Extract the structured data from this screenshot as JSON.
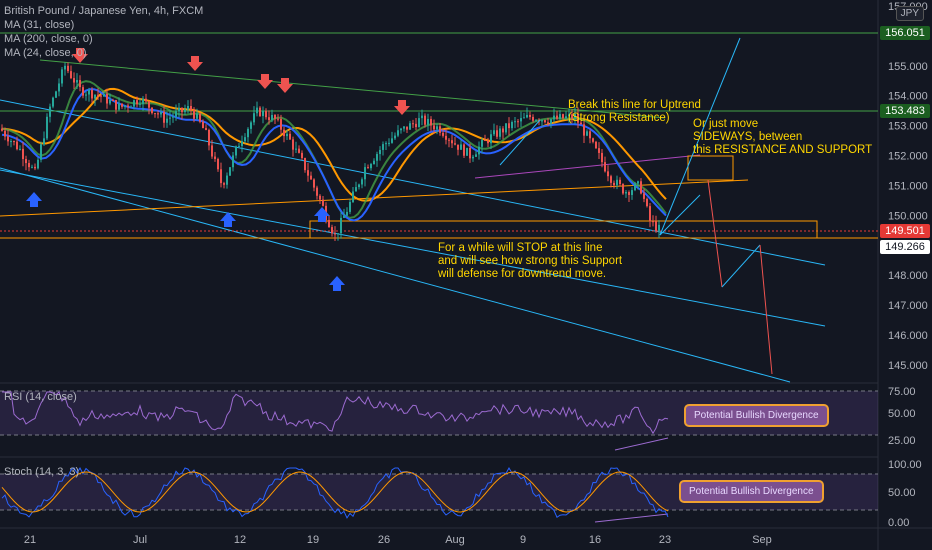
{
  "header": {
    "symbol": "British Pound / Japanese Yen, 4h, FXCM",
    "ma1": "MA (31, close)",
    "ma2": "MA (200, close, 0)",
    "ma3": "MA (24, close, 0)",
    "currency": "JPY"
  },
  "price_scale": [
    "157.000",
    "156.000",
    "155.000",
    "154.000",
    "153.000",
    "152.000",
    "151.000",
    "150.000",
    "149.000",
    "148.000",
    "147.000",
    "146.000",
    "145.000"
  ],
  "price_tags": [
    {
      "label": "156.051",
      "bg": "#1b5e20",
      "fg": "#ffffff"
    },
    {
      "label": "153.483",
      "bg": "#1b5e20",
      "fg": "#ffffff"
    },
    {
      "label": "149.501",
      "bg": "#e53935",
      "fg": "#ffffff"
    },
    {
      "label": "149.266",
      "bg": "#ffffff",
      "fg": "#131722"
    }
  ],
  "time_axis": [
    "21",
    "Jul",
    "12",
    "19",
    "26",
    "Aug",
    "9",
    "16",
    "23",
    "Sep"
  ],
  "annotations": {
    "break_line1": "Break this line for Uptrend",
    "break_line2": "(Strong Resistance)",
    "sideways1": "Or just move",
    "sideways2": "SIDEWAYS, between",
    "sideways3": "this RESISTANCE AND SUPPORT",
    "stop1": "For a while will STOP at this line",
    "stop2": "and will see how strong this Support",
    "stop3": "will defense for downtrend move."
  },
  "rsi": {
    "title": "RSI (14, close)",
    "scale": [
      "75.00",
      "50.00",
      "25.00"
    ],
    "callout": "Potential Bullish Divergence"
  },
  "stoch": {
    "title": "Stoch (14, 3, 3)",
    "scale": [
      "100.00",
      "50.00",
      "0.00"
    ],
    "callout": "Potential Bullish Divergence"
  },
  "colors": {
    "background": "#131722",
    "up": "#26a69a",
    "down": "#ef5350",
    "ma_blue": "#2962ff",
    "ma_orange": "#ff9800",
    "ma_green": "#43a047",
    "channel": "#29b6f6",
    "annotation": "#ffd600"
  }
}
